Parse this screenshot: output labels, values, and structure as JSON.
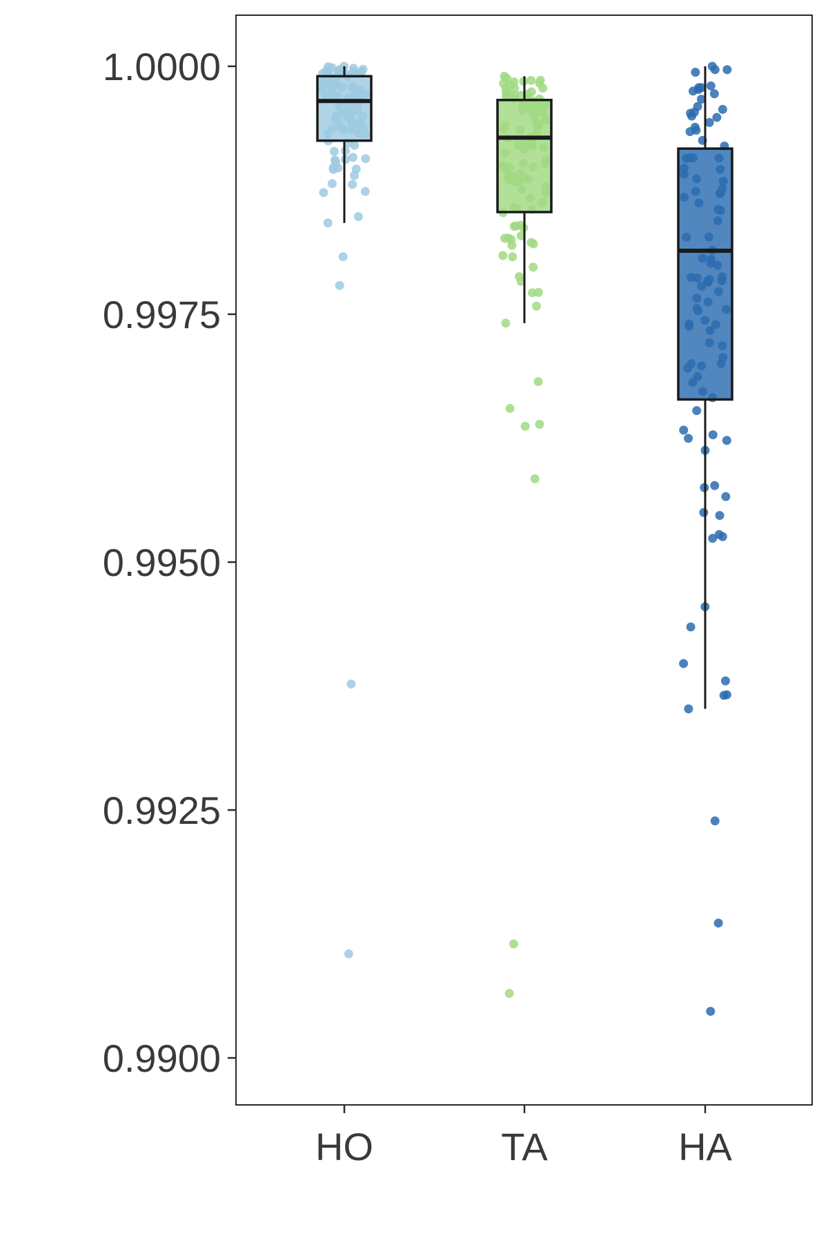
{
  "chart_data": {
    "type": "boxplot",
    "title": "",
    "xlabel": "",
    "ylabel": "",
    "ylim": [
      0.99,
      1.0
    ],
    "yticks": [
      1.0,
      0.9975,
      0.995,
      0.9925,
      0.99
    ],
    "ytick_labels": [
      "1.0000",
      "0.9975",
      "0.9950",
      "0.9925",
      "0.9900"
    ],
    "categories": [
      "HO",
      "TA",
      "HA"
    ],
    "grid": false,
    "legend": "none",
    "colors": {
      "HO": "#9ecae1",
      "TA": "#a1d982",
      "HA": "#2b6cb0"
    },
    "boxes": [
      {
        "category": "HO",
        "q1": 0.99925,
        "median": 0.99965,
        "q3": 0.9999,
        "whisker_low": 0.99842,
        "whisker_high": 1.0,
        "outliers": [
          0.99808,
          0.99779,
          0.99377,
          0.99105
        ]
      },
      {
        "category": "TA",
        "q1": 0.99853,
        "median": 0.99928,
        "q3": 0.99966,
        "whisker_low": 0.99741,
        "whisker_high": 0.9999,
        "outliers": [
          0.99682,
          0.99655,
          0.99637,
          0.99639,
          0.99584,
          0.99115,
          0.99065
        ]
      },
      {
        "category": "HA",
        "q1": 0.99664,
        "median": 0.99814,
        "q3": 0.99917,
        "whisker_low": 0.99352,
        "whisker_high": 1.0,
        "outliers": [
          0.99239,
          0.99136,
          0.99047
        ]
      }
    ]
  }
}
